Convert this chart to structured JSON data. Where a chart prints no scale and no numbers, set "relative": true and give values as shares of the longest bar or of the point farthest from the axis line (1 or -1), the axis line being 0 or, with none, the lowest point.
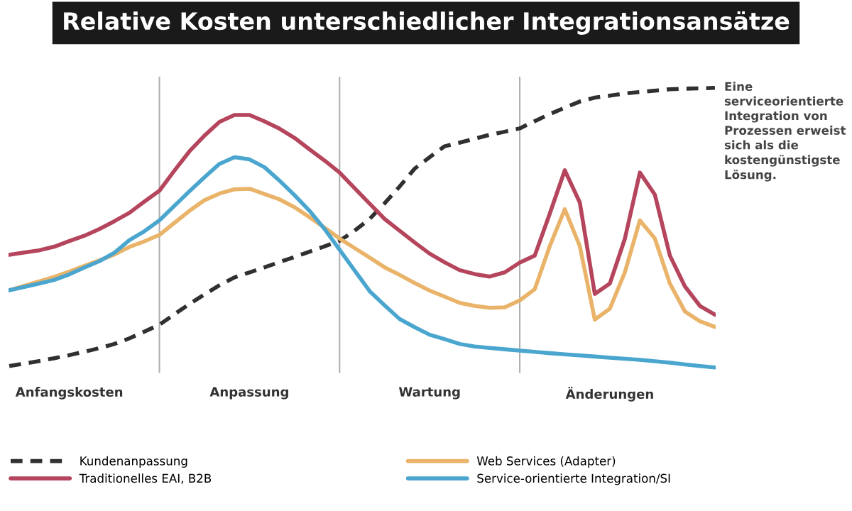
{
  "chart_data": {
    "type": "line",
    "relative": true,
    "title": "Relative Kosten unterschiedlicher Integrationsansätze",
    "annotations": [
      "Eine serviceorientierte Integration von Prozessen erweist sich als die kostengünstigste Lösung."
    ],
    "categories": [
      null,
      null,
      null,
      null,
      "Anfangskosten",
      null,
      null,
      null,
      null,
      null,
      null,
      null,
      null,
      null,
      null,
      null,
      "Anpassung",
      null,
      null,
      null,
      null,
      null,
      null,
      null,
      null,
      null,
      null,
      null,
      "Wartung",
      null,
      null,
      null,
      null,
      null,
      null,
      null,
      null,
      null,
      null,
      null,
      "Änderungen",
      null,
      null,
      null,
      null,
      null,
      null,
      null
    ],
    "grid": "x",
    "legend": "bottom",
    "series": [
      {
        "name": "Kundenanpassung",
        "color": "#303030",
        "line_style": "dashed",
        "values": [
          0.005,
          0.014,
          0.023,
          0.033,
          0.044,
          0.056,
          0.069,
          0.084,
          0.104,
          0.128,
          0.153,
          0.19,
          0.227,
          0.261,
          0.294,
          0.322,
          0.34,
          0.358,
          0.377,
          0.395,
          0.414,
          0.433,
          0.453,
          0.489,
          0.531,
          0.587,
          0.647,
          0.711,
          0.752,
          0.791,
          0.804,
          0.818,
          0.832,
          0.843,
          0.855,
          0.881,
          0.906,
          0.929,
          0.951,
          0.965,
          0.972,
          0.98,
          0.985,
          0.99,
          0.995,
          0.997,
          0.998,
          1.0
        ]
      },
      {
        "name": "Traditionelles EAI, B2B",
        "color": "#b5455c",
        "line_style": "solid",
        "values": [
          0.403,
          0.411,
          0.419,
          0.432,
          0.452,
          0.471,
          0.495,
          0.523,
          0.553,
          0.593,
          0.632,
          0.704,
          0.773,
          0.829,
          0.878,
          0.903,
          0.903,
          0.88,
          0.854,
          0.821,
          0.78,
          0.74,
          0.697,
          0.641,
          0.586,
          0.531,
          0.489,
          0.447,
          0.407,
          0.376,
          0.348,
          0.334,
          0.325,
          0.34,
          0.375,
          0.4,
          0.55,
          0.705,
          0.59,
          0.263,
          0.3,
          0.46,
          0.697,
          0.618,
          0.4,
          0.29,
          0.22,
          0.189
        ]
      },
      {
        "name": "Web Services (Adapter)",
        "color": "#e9b46a",
        "line_style": "solid",
        "values": [
          0.276,
          0.292,
          0.308,
          0.324,
          0.343,
          0.363,
          0.383,
          0.404,
          0.431,
          0.451,
          0.474,
          0.517,
          0.56,
          0.598,
          0.622,
          0.637,
          0.639,
          0.62,
          0.601,
          0.573,
          0.537,
          0.5,
          0.461,
          0.427,
          0.393,
          0.358,
          0.331,
          0.302,
          0.275,
          0.253,
          0.231,
          0.22,
          0.213,
          0.215,
          0.24,
          0.28,
          0.434,
          0.566,
          0.434,
          0.171,
          0.21,
          0.34,
          0.526,
          0.461,
          0.3,
          0.2,
          0.165,
          0.145
        ]
      },
      {
        "name": "Service-orientierte Integration/SI",
        "color": "#4aa6cf",
        "line_style": "solid",
        "values": [
          0.276,
          0.288,
          0.3,
          0.313,
          0.333,
          0.357,
          0.38,
          0.41,
          0.455,
          0.487,
          0.526,
          0.578,
          0.63,
          0.68,
          0.728,
          0.752,
          0.744,
          0.716,
          0.668,
          0.616,
          0.56,
          0.495,
          0.421,
          0.347,
          0.273,
          0.222,
          0.173,
          0.144,
          0.117,
          0.101,
          0.084,
          0.075,
          0.07,
          0.065,
          0.06,
          0.056,
          0.051,
          0.047,
          0.043,
          0.039,
          0.035,
          0.031,
          0.027,
          0.022,
          0.017,
          0.011,
          0.005,
          0.0
        ]
      }
    ]
  }
}
